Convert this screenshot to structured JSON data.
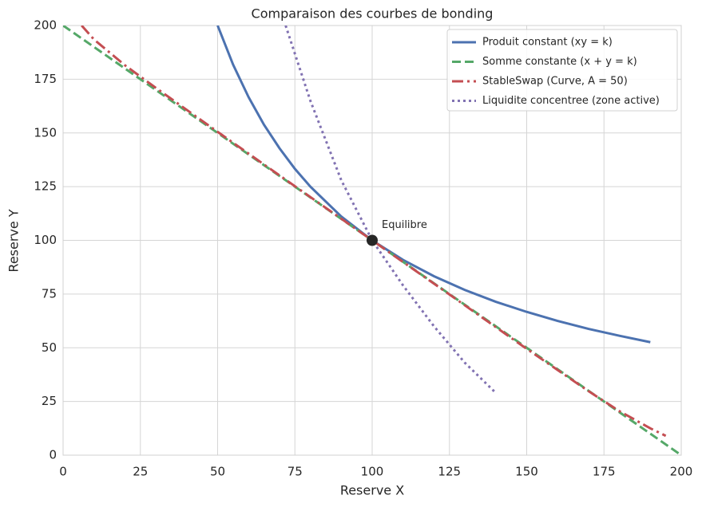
{
  "chart_data": {
    "type": "line",
    "title": "Comparaison des courbes de bonding",
    "x_label": "Reserve X",
    "y_label": "Reserve Y",
    "xlim": [
      0,
      200
    ],
    "ylim": [
      0,
      200
    ],
    "xticks": [
      0,
      25,
      50,
      75,
      100,
      125,
      150,
      175,
      200
    ],
    "yticks": [
      0,
      25,
      50,
      75,
      100,
      125,
      150,
      175,
      200
    ],
    "grid": true,
    "legend": "upper right",
    "series": [
      {
        "name": "Produit constant (xy = k)",
        "color": "#4c72b0",
        "linestyle": "solid",
        "x": [
          50,
          55,
          60,
          65,
          70,
          75,
          80,
          90,
          100,
          110,
          120,
          130,
          140,
          150,
          160,
          170,
          180,
          190
        ],
        "values": [
          200,
          181.8,
          166.7,
          153.8,
          142.9,
          133.3,
          125,
          111.1,
          100,
          90.9,
          83.3,
          76.9,
          71.4,
          66.7,
          62.5,
          58.8,
          55.6,
          52.6
        ]
      },
      {
        "name": "Somme constante (x + y = k)",
        "color": "#55a868",
        "linestyle": "dashed",
        "x": [
          0,
          50,
          100,
          150,
          200
        ],
        "values": [
          200,
          150,
          100,
          50,
          0
        ]
      },
      {
        "name": "StableSwap (Curve, A = 50)",
        "color": "#c44e52",
        "linestyle": "dashdot",
        "x": [
          6,
          10,
          20,
          30,
          50,
          75,
          100,
          125,
          150,
          170,
          180,
          190,
          195
        ],
        "values": [
          200,
          193.5,
          181.5,
          171,
          150.5,
          125.2,
          100,
          74.8,
          49.5,
          29.8,
          20.5,
          12.5,
          9
        ]
      },
      {
        "name": "Liquidite concentree (zone active)",
        "color": "#8172b2",
        "linestyle": "dotted",
        "x": [
          72,
          80,
          90,
          100,
          110,
          120,
          130,
          140
        ],
        "values": [
          200,
          165,
          128,
          100,
          79,
          60,
          43,
          29
        ]
      }
    ],
    "points": [
      {
        "label": "Equilibre",
        "x": 100,
        "y": 100,
        "color": "#262626"
      }
    ]
  }
}
